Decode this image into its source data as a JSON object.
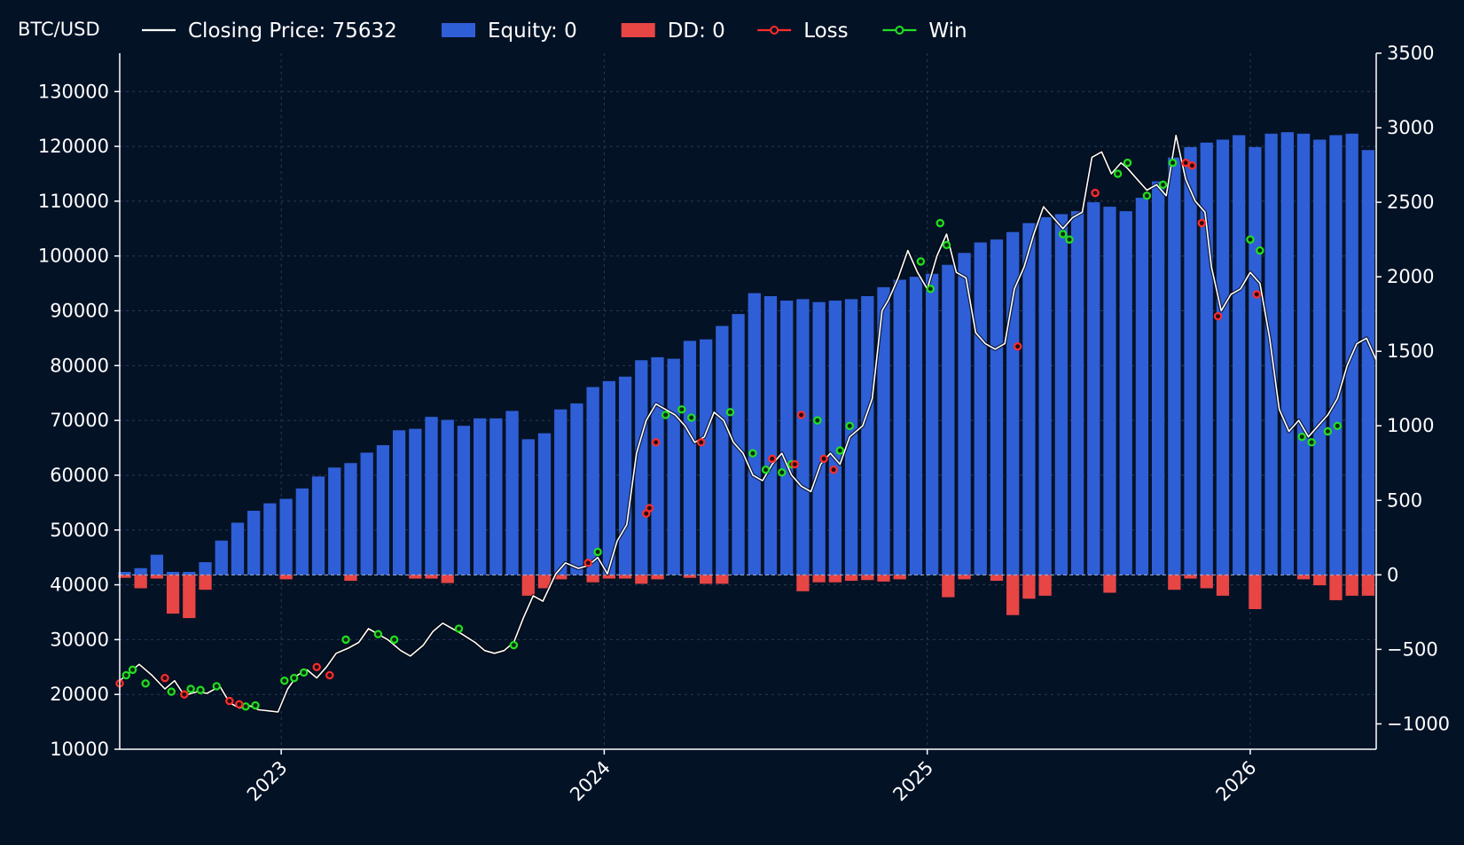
{
  "chart_data": {
    "type": "bar",
    "title": "",
    "ylabel": "BTC/USD",
    "xlabel": "",
    "grid": true,
    "legend_placement": "top",
    "legend": [
      {
        "label": "Closing Price: 75632",
        "kind": "line",
        "color": "#ffffff"
      },
      {
        "label": "Equity: 0",
        "kind": "bar",
        "color": "#2f5fd6"
      },
      {
        "label": "DD: 0",
        "kind": "bar",
        "color": "#e84545"
      },
      {
        "label": "Loss",
        "kind": "marker",
        "color": "#ff2d2d"
      },
      {
        "label": "Win",
        "kind": "marker",
        "color": "#21e021"
      }
    ],
    "x_range": [
      2022.5,
      2026.39
    ],
    "x_ticks": [
      {
        "value": 2023,
        "label": "2023"
      },
      {
        "value": 2024,
        "label": "2024"
      },
      {
        "value": 2025,
        "label": "2025"
      },
      {
        "value": 2026,
        "label": "2026"
      }
    ],
    "y_left": {
      "min": 10000,
      "max": 137000,
      "ticks": [
        10000,
        20000,
        30000,
        40000,
        50000,
        60000,
        70000,
        80000,
        90000,
        100000,
        110000,
        120000,
        130000
      ]
    },
    "y_right": {
      "min": -1170,
      "max": 3500,
      "ticks": [
        -1000,
        -500,
        0,
        500,
        1000,
        1500,
        2000,
        2500,
        3000,
        3500
      ]
    },
    "colors": {
      "equity": "#2f5fd6",
      "drawdown": "#e84545",
      "price": "#ffffff",
      "loss": "#ff2d2d",
      "win": "#21e021",
      "grid": "#2a3a55",
      "zero": "#9fb4d8"
    },
    "price_series": {
      "x": [
        2022.5,
        2022.53,
        2022.56,
        2022.6,
        2022.64,
        2022.67,
        2022.7,
        2022.74,
        2022.77,
        2022.81,
        2022.84,
        2022.87,
        2022.9,
        2022.93,
        2022.96,
        2022.99,
        2023.02,
        2023.05,
        2023.08,
        2023.11,
        2023.14,
        2023.17,
        2023.21,
        2023.24,
        2023.27,
        2023.3,
        2023.33,
        2023.37,
        2023.4,
        2023.44,
        2023.47,
        2023.5,
        2023.53,
        2023.56,
        2023.6,
        2023.63,
        2023.66,
        2023.69,
        2023.72,
        2023.75,
        2023.78,
        2023.81,
        2023.85,
        2023.88,
        2023.92,
        2023.95,
        2023.98,
        2024.01,
        2024.04,
        2024.07,
        2024.1,
        2024.13,
        2024.16,
        2024.19,
        2024.22,
        2024.25,
        2024.28,
        2024.31,
        2024.34,
        2024.37,
        2024.4,
        2024.43,
        2024.46,
        2024.49,
        2024.52,
        2024.55,
        2024.58,
        2024.61,
        2024.64,
        2024.67,
        2024.7,
        2024.73,
        2024.76,
        2024.8,
        2024.83,
        2024.86,
        2024.88,
        2024.91,
        2024.94,
        2024.97,
        2025.0,
        2025.03,
        2025.06,
        2025.09,
        2025.12,
        2025.15,
        2025.18,
        2025.21,
        2025.24,
        2025.27,
        2025.3,
        2025.33,
        2025.36,
        2025.39,
        2025.42,
        2025.45,
        2025.48,
        2025.51,
        2025.54,
        2025.57,
        2025.6,
        2025.62,
        2025.65,
        2025.68,
        2025.71,
        2025.74,
        2025.77,
        2025.8,
        2025.83,
        2025.86,
        2025.88,
        2025.91,
        2025.94,
        2025.97,
        2026.0,
        2026.03,
        2026.06,
        2026.09,
        2026.12,
        2026.15,
        2026.18,
        2026.21,
        2026.24,
        2026.27,
        2026.3,
        2026.33,
        2026.36,
        2026.39
      ],
      "y": [
        22500,
        24000,
        25500,
        23500,
        21000,
        22500,
        19800,
        20500,
        20200,
        21500,
        18500,
        17500,
        18000,
        17200,
        17000,
        16800,
        21000,
        23500,
        24500,
        23000,
        25000,
        27500,
        28500,
        29500,
        32000,
        31000,
        30000,
        28000,
        27000,
        29000,
        31500,
        33000,
        32000,
        31000,
        29500,
        28000,
        27500,
        28000,
        29500,
        34000,
        38000,
        37000,
        42000,
        44000,
        43000,
        43500,
        45000,
        42000,
        48000,
        51000,
        64000,
        70000,
        73000,
        72000,
        71000,
        69000,
        66000,
        67000,
        71500,
        70000,
        66000,
        64000,
        60000,
        59000,
        62000,
        64000,
        60000,
        58000,
        57000,
        62000,
        64000,
        62000,
        67000,
        69000,
        74000,
        90000,
        92000,
        96000,
        101000,
        97000,
        94000,
        100000,
        104000,
        97000,
        96000,
        86000,
        84000,
        83000,
        84000,
        94000,
        98000,
        104000,
        109000,
        107000,
        105000,
        107000,
        108000,
        118000,
        119000,
        115000,
        117000,
        116000,
        114000,
        112000,
        113000,
        111000,
        122000,
        114000,
        110000,
        108000,
        98000,
        90000,
        93000,
        94000,
        97000,
        95000,
        85000,
        72000,
        68000,
        70000,
        67000,
        69000,
        71000,
        74000,
        80000,
        84000,
        85000,
        81000
      ]
    },
    "equity_series": {
      "width": 0.0392,
      "x": [
        2022.515,
        2022.565,
        2022.615,
        2022.665,
        2022.715,
        2022.765,
        2022.815,
        2022.865,
        2022.915,
        2022.965,
        2023.015,
        2023.065,
        2023.115,
        2023.165,
        2023.215,
        2023.265,
        2023.315,
        2023.365,
        2023.415,
        2023.465,
        2023.515,
        2023.565,
        2023.615,
        2023.665,
        2023.715,
        2023.765,
        2023.815,
        2023.865,
        2023.915,
        2023.965,
        2024.015,
        2024.065,
        2024.115,
        2024.165,
        2024.215,
        2024.265,
        2024.315,
        2024.365,
        2024.415,
        2024.465,
        2024.515,
        2024.565,
        2024.615,
        2024.665,
        2024.715,
        2024.765,
        2024.815,
        2024.865,
        2024.915,
        2024.965,
        2025.015,
        2025.065,
        2025.115,
        2025.165,
        2025.215,
        2025.265,
        2025.315,
        2025.365,
        2025.415,
        2025.465,
        2025.515,
        2025.565,
        2025.615,
        2025.665,
        2025.715,
        2025.765,
        2025.815,
        2025.865,
        2025.915,
        2025.965,
        2026.015,
        2026.065,
        2026.115,
        2026.165,
        2026.215,
        2026.265,
        2026.315,
        2026.365
      ],
      "values": [
        20,
        45,
        135,
        20,
        20,
        85,
        230,
        350,
        430,
        480,
        510,
        580,
        660,
        720,
        750,
        820,
        870,
        970,
        980,
        1060,
        1040,
        1000,
        1050,
        1050,
        1100,
        910,
        950,
        1110,
        1150,
        1260,
        1300,
        1330,
        1440,
        1460,
        1450,
        1570,
        1580,
        1670,
        1750,
        1890,
        1870,
        1840,
        1850,
        1830,
        1840,
        1850,
        1870,
        1930,
        1980,
        2000,
        2020,
        2080,
        2160,
        2230,
        2250,
        2300,
        2360,
        2400,
        2420,
        2440,
        2500,
        2470,
        2440,
        2530,
        2640,
        2800,
        2870,
        2900,
        2920,
        2950,
        2870,
        2960,
        2970,
        2960,
        2920,
        2950,
        2960,
        2850
      ]
    },
    "drawdown_series": {
      "width": 0.0392,
      "x": [
        2022.515,
        2022.565,
        2022.615,
        2022.665,
        2022.715,
        2022.765,
        2023.015,
        2023.215,
        2023.415,
        2023.465,
        2023.515,
        2023.765,
        2023.815,
        2023.865,
        2023.965,
        2024.015,
        2024.065,
        2024.115,
        2024.165,
        2024.265,
        2024.315,
        2024.365,
        2024.615,
        2024.665,
        2024.715,
        2024.765,
        2024.815,
        2024.865,
        2024.915,
        2025.065,
        2025.115,
        2025.215,
        2025.265,
        2025.315,
        2025.365,
        2025.565,
        2025.765,
        2025.815,
        2025.865,
        2025.915,
        2026.015,
        2026.165,
        2026.215,
        2026.265,
        2026.315,
        2026.365
      ],
      "values": [
        -20,
        -90,
        -25,
        -260,
        -290,
        -100,
        -30,
        -40,
        -25,
        -25,
        -55,
        -140,
        -90,
        -30,
        -50,
        -25,
        -25,
        -60,
        -30,
        -20,
        -60,
        -60,
        -110,
        -50,
        -50,
        -40,
        -35,
        -45,
        -30,
        -150,
        -30,
        -40,
        -270,
        -160,
        -140,
        -120,
        -100,
        -25,
        -90,
        -140,
        -230,
        -30,
        -70,
        -170,
        -140,
        -140
      ]
    },
    "wins": {
      "x": [
        2022.52,
        2022.54,
        2022.58,
        2022.66,
        2022.72,
        2022.75,
        2022.8,
        2022.89,
        2022.92,
        2023.01,
        2023.04,
        2023.07,
        2023.2,
        2023.3,
        2023.35,
        2023.55,
        2023.72,
        2023.98,
        2024.19,
        2024.24,
        2024.27,
        2024.39,
        2024.46,
        2024.5,
        2024.55,
        2024.58,
        2024.66,
        2024.73,
        2024.76,
        2024.98,
        2025.01,
        2025.04,
        2025.06,
        2025.42,
        2025.44,
        2025.59,
        2025.62,
        2025.68,
        2025.73,
        2025.76,
        2026.0,
        2026.03,
        2026.16,
        2026.19,
        2026.24,
        2026.27
      ],
      "values": [
        23500,
        24500,
        22000,
        20500,
        21000,
        20800,
        21500,
        17800,
        18000,
        22500,
        23000,
        24000,
        30000,
        31000,
        30000,
        32000,
        29000,
        46000,
        71000,
        72000,
        70500,
        71500,
        64000,
        61000,
        60500,
        62000,
        70000,
        64500,
        69000,
        99000,
        94000,
        106000,
        102000,
        104000,
        103000,
        115000,
        117000,
        111000,
        113000,
        117000,
        103000,
        101000,
        67000,
        66000,
        68000,
        69000
      ]
    },
    "losses": {
      "x": [
        2022.5,
        2022.64,
        2022.7,
        2022.84,
        2022.87,
        2023.11,
        2023.15,
        2023.95,
        2024.13,
        2024.14,
        2024.16,
        2024.3,
        2024.52,
        2024.59,
        2024.61,
        2024.68,
        2024.71,
        2025.28,
        2025.52,
        2025.8,
        2025.82,
        2025.85,
        2025.9,
        2026.02
      ],
      "values": [
        22000,
        23000,
        20000,
        18800,
        18200,
        25000,
        23500,
        44000,
        53000,
        54000,
        66000,
        66000,
        63000,
        62000,
        71000,
        63000,
        61000,
        83500,
        111500,
        117000,
        116500,
        106000,
        89000,
        93000
      ]
    }
  }
}
